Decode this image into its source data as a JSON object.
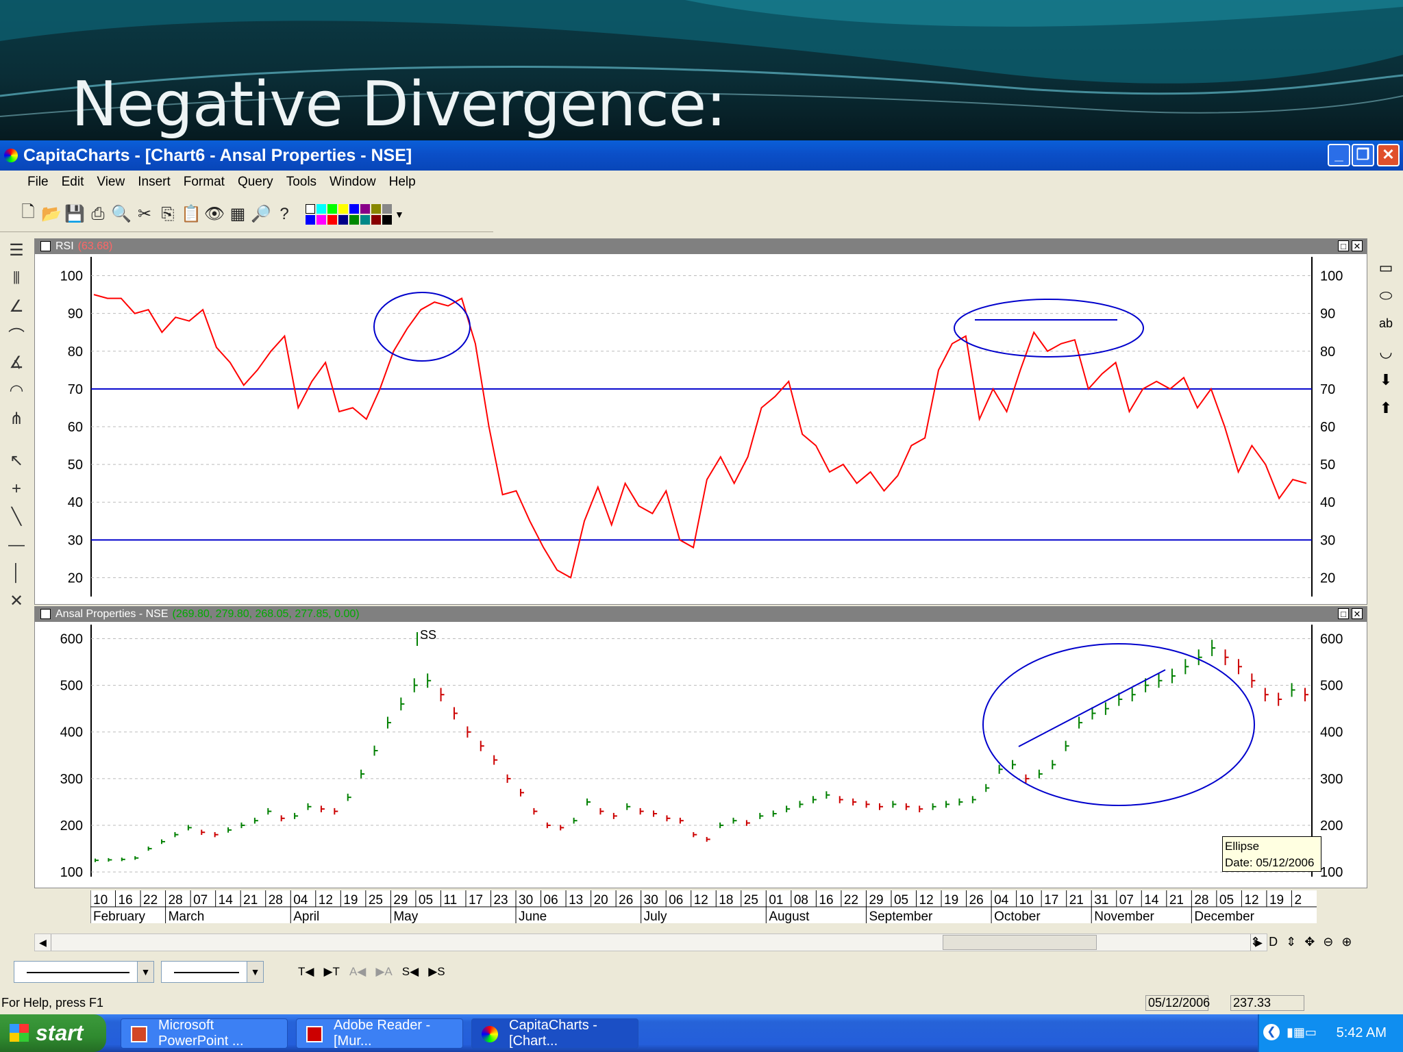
{
  "slide": {
    "title": "Negative Divergence:"
  },
  "window": {
    "title": "CapitaCharts - [Chart6 - Ansal Properties - NSE]",
    "btn_min": "_",
    "btn_max": "❐",
    "btn_close": "✕"
  },
  "menu": {
    "items": [
      "File",
      "Edit",
      "View",
      "Insert",
      "Format",
      "Query",
      "Tools",
      "Window",
      "Help"
    ]
  },
  "rsi_pane": {
    "label": "RSI",
    "value": "(63.68)",
    "value_color": "#cc0000"
  },
  "price_pane": {
    "label": "Ansal Properties - NSE",
    "value": "(269.80, 279.80, 268.05, 277.85, 0.00)",
    "value_color": "#008000"
  },
  "annotations": {
    "ss_label": "SS",
    "tooltip_line1": "Ellipse",
    "tooltip_line2": "Date: 05/12/2006"
  },
  "date_axis": {
    "days": [
      "10",
      "16",
      "22",
      "28",
      "07",
      "14",
      "21",
      "28",
      "04",
      "12",
      "19",
      "25",
      "29",
      "05",
      "11",
      "17",
      "23",
      "30",
      "06",
      "13",
      "20",
      "26",
      "30",
      "06",
      "12",
      "18",
      "25",
      "01",
      "08",
      "16",
      "22",
      "29",
      "05",
      "12",
      "19",
      "26",
      "04",
      "10",
      "17",
      "21",
      "31",
      "07",
      "14",
      "21",
      "28",
      "05",
      "12",
      "19",
      "2"
    ],
    "months": [
      "February",
      "March",
      "April",
      "May",
      "June",
      "July",
      "August",
      "September",
      "October",
      "November",
      "December"
    ]
  },
  "status": {
    "help": "For Help, press F1",
    "date": "05/12/2006",
    "value": "237.33"
  },
  "bottom_toolbar": {
    "labels": [
      "T◀",
      "▶T",
      "A◀",
      "▶A",
      "S◀",
      "▶S"
    ],
    "right_label": "D"
  },
  "taskbar": {
    "start": "start",
    "tasks": [
      "Microsoft PowerPoint ...",
      "Adobe Reader - [Mur...",
      "CapitaCharts - [Chart..."
    ],
    "clock": "5:42 AM"
  },
  "chart_data": [
    {
      "type": "line",
      "title": "RSI",
      "series": [
        {
          "name": "RSI",
          "color": "#ff0000",
          "values": [
            95,
            94,
            94,
            90,
            91,
            85,
            89,
            88,
            91,
            81,
            77,
            71,
            75,
            80,
            84,
            65,
            72,
            77,
            64,
            65,
            62,
            70,
            80,
            86,
            91,
            93,
            92,
            94,
            82,
            60,
            42,
            43,
            35,
            28,
            22,
            20,
            35,
            44,
            34,
            45,
            39,
            37,
            43,
            30,
            28,
            46,
            52,
            45,
            52,
            65,
            68,
            72,
            58,
            55,
            48,
            50,
            45,
            48,
            43,
            47,
            55,
            57,
            75,
            82,
            84,
            62,
            70,
            64,
            75,
            85,
            80,
            82,
            83,
            70,
            74,
            77,
            64,
            70,
            72,
            70,
            73,
            65,
            70,
            60,
            48,
            55,
            50,
            41,
            46,
            45
          ]
        }
      ],
      "ylim": [
        15,
        105
      ],
      "yticks": [
        100,
        90,
        80,
        70,
        60,
        50,
        40,
        30,
        20
      ],
      "reference_lines": [
        70,
        30
      ],
      "reference_color": "#0000cc"
    },
    {
      "type": "bar",
      "title": "Ansal Properties - NSE",
      "series": [
        {
          "name": "Close",
          "values": [
            125,
            126,
            127,
            130,
            150,
            165,
            180,
            195,
            185,
            180,
            190,
            200,
            210,
            230,
            215,
            220,
            240,
            235,
            230,
            260,
            310,
            360,
            420,
            460,
            500,
            510,
            480,
            440,
            400,
            370,
            340,
            300,
            270,
            230,
            200,
            195,
            210,
            250,
            230,
            220,
            240,
            230,
            225,
            215,
            210,
            180,
            170,
            200,
            210,
            205,
            220,
            225,
            235,
            245,
            255,
            265,
            255,
            250,
            245,
            240,
            245,
            240,
            235,
            240,
            245,
            250,
            255,
            280,
            320,
            330,
            300,
            310,
            330,
            370,
            420,
            440,
            450,
            470,
            480,
            500,
            510,
            520,
            540,
            560,
            580,
            560,
            540,
            510,
            480,
            470,
            490,
            480
          ]
        }
      ],
      "up_color": "#008000",
      "down_color": "#cc0000",
      "ylim": [
        90,
        630
      ],
      "yticks": [
        600,
        500,
        400,
        300,
        200,
        100
      ]
    }
  ]
}
